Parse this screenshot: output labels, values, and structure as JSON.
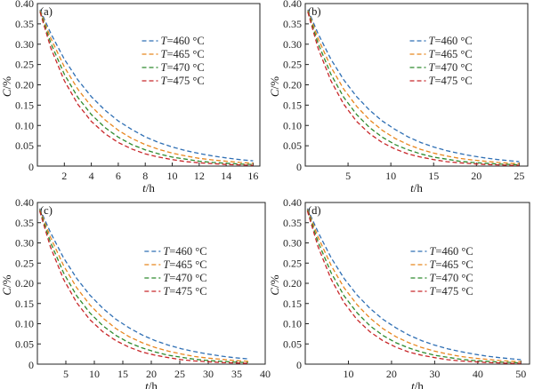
{
  "figure": {
    "y_axis_title": {
      "symbol": "C",
      "unit": "/%"
    },
    "x_axis_title": {
      "symbol": "t",
      "unit": "/h"
    },
    "legend_prefix": "T",
    "legend_suffix": "=",
    "legend_unit": " °C"
  },
  "colors": {
    "series_460": "#2f6fb4",
    "series_465": "#e8861e",
    "series_470": "#2d8a2d",
    "series_475": "#c8272a",
    "axis": "#222222"
  },
  "chart_data": [
    {
      "type": "line",
      "panel_label": "(a)",
      "xlabel": "t/h",
      "ylabel": "C/%",
      "xlim": [
        0,
        16.5
      ],
      "ylim": [
        0,
        0.4
      ],
      "xticks": [
        2,
        4,
        6,
        8,
        10,
        12,
        14,
        16
      ],
      "yticks": [
        0.05,
        0.1,
        0.15,
        0.2,
        0.25,
        0.3,
        0.35,
        0.4
      ],
      "ytick_labels": [
        "0.05",
        "0.10",
        "0.15",
        "0.20",
        "0.25",
        "0.30",
        "0.35",
        "0.40"
      ],
      "origin_label": "0",
      "legend_position": "top-right",
      "series": [
        {
          "name": "T=460 °C",
          "temp": "460",
          "x": [
            0.2,
            1,
            2,
            3,
            4,
            5,
            6,
            7,
            8,
            9,
            10,
            11,
            12,
            13,
            14,
            15,
            16
          ],
          "y": [
            0.385,
            0.326,
            0.263,
            0.212,
            0.171,
            0.138,
            0.111,
            0.09,
            0.072,
            0.058,
            0.047,
            0.038,
            0.031,
            0.025,
            0.02,
            0.016,
            0.013
          ]
        },
        {
          "name": "T=465 °C",
          "temp": "465",
          "x": [
            0.2,
            1,
            2,
            3,
            4,
            5,
            6,
            7,
            8,
            9,
            10,
            11,
            12,
            13,
            14,
            15,
            16
          ],
          "y": [
            0.383,
            0.314,
            0.244,
            0.189,
            0.147,
            0.114,
            0.088,
            0.068,
            0.053,
            0.041,
            0.032,
            0.025,
            0.019,
            0.015,
            0.012,
            0.009,
            0.007
          ]
        },
        {
          "name": "T=470 °C",
          "temp": "470",
          "x": [
            0.2,
            1,
            2,
            3,
            4,
            5,
            6,
            7,
            8,
            9,
            10,
            11,
            12,
            13,
            14,
            15,
            16
          ],
          "y": [
            0.381,
            0.302,
            0.226,
            0.169,
            0.127,
            0.095,
            0.071,
            0.053,
            0.04,
            0.03,
            0.022,
            0.017,
            0.012,
            0.009,
            0.007,
            0.005,
            0.004
          ]
        },
        {
          "name": "T=475 °C",
          "temp": "475",
          "x": [
            0.2,
            1,
            2,
            3,
            4,
            5,
            6,
            7,
            8,
            9,
            10,
            11,
            12,
            13,
            14,
            15,
            16
          ],
          "y": [
            0.379,
            0.29,
            0.21,
            0.152,
            0.11,
            0.08,
            0.058,
            0.042,
            0.03,
            0.022,
            0.016,
            0.011,
            0.008,
            0.006,
            0.004,
            0.003,
            0.002
          ]
        }
      ]
    },
    {
      "type": "line",
      "panel_label": "(b)",
      "xlabel": "t/h",
      "ylabel": "C/%",
      "xlim": [
        0,
        26
      ],
      "ylim": [
        0,
        0.4
      ],
      "xticks": [
        5,
        10,
        15,
        20,
        25
      ],
      "yticks": [
        0.05,
        0.1,
        0.15,
        0.2,
        0.25,
        0.3,
        0.35,
        0.4
      ],
      "ytick_labels": [
        "0.05",
        "0.10",
        "0.15",
        "0.20",
        "0.25",
        "0.30",
        "0.35",
        "0.40"
      ],
      "origin_label": "0",
      "legend_position": "top-right",
      "series": [
        {
          "name": "T=460 °C",
          "temp": "460",
          "x": [
            0.3,
            1.5,
            3,
            4.5,
            6,
            7.5,
            9,
            10.5,
            12,
            13.5,
            15,
            16.5,
            18,
            19.5,
            21,
            22.5,
            24,
            25
          ],
          "y": [
            0.385,
            0.326,
            0.263,
            0.212,
            0.171,
            0.138,
            0.111,
            0.09,
            0.072,
            0.058,
            0.047,
            0.038,
            0.031,
            0.025,
            0.02,
            0.016,
            0.013,
            0.011
          ]
        },
        {
          "name": "T=465 °C",
          "temp": "465",
          "x": [
            0.3,
            1.5,
            3,
            4.5,
            6,
            7.5,
            9,
            10.5,
            12,
            13.5,
            15,
            16.5,
            18,
            19.5,
            21,
            22.5,
            24,
            25
          ],
          "y": [
            0.383,
            0.314,
            0.244,
            0.189,
            0.147,
            0.114,
            0.088,
            0.068,
            0.053,
            0.041,
            0.032,
            0.025,
            0.019,
            0.015,
            0.012,
            0.009,
            0.007,
            0.006
          ]
        },
        {
          "name": "T=470 °C",
          "temp": "470",
          "x": [
            0.3,
            1.5,
            3,
            4.5,
            6,
            7.5,
            9,
            10.5,
            12,
            13.5,
            15,
            16.5,
            18,
            19.5,
            21,
            22.5,
            24,
            25
          ],
          "y": [
            0.381,
            0.302,
            0.226,
            0.169,
            0.127,
            0.095,
            0.071,
            0.053,
            0.04,
            0.03,
            0.022,
            0.017,
            0.012,
            0.009,
            0.007,
            0.005,
            0.004,
            0.003
          ]
        },
        {
          "name": "T=475 °C",
          "temp": "475",
          "x": [
            0.3,
            1.5,
            3,
            4.5,
            6,
            7.5,
            9,
            10.5,
            12,
            13.5,
            15,
            16.5,
            18,
            19.5,
            21,
            22.5,
            24,
            25
          ],
          "y": [
            0.379,
            0.29,
            0.21,
            0.152,
            0.11,
            0.08,
            0.058,
            0.042,
            0.03,
            0.022,
            0.016,
            0.011,
            0.008,
            0.006,
            0.004,
            0.003,
            0.002,
            0.002
          ]
        }
      ]
    },
    {
      "type": "line",
      "panel_label": "(c)",
      "xlabel": "t/h",
      "ylabel": "C/%",
      "xlim": [
        0,
        40
      ],
      "ylim": [
        0,
        0.4
      ],
      "xticks": [
        5,
        10,
        15,
        20,
        25,
        30,
        35,
        40
      ],
      "yticks": [
        0.05,
        0.1,
        0.15,
        0.2,
        0.25,
        0.3,
        0.35,
        0.4
      ],
      "ytick_labels": [
        "0.05",
        "0.10",
        "0.15",
        "0.20",
        "0.25",
        "0.30",
        "0.35",
        "0.40"
      ],
      "origin_label": "0",
      "legend_position": "center-right",
      "series": [
        {
          "name": "T=460 °C",
          "temp": "460",
          "x": [
            0.4,
            2.3,
            4.6,
            6.9,
            9.2,
            11.5,
            13.8,
            16.1,
            18.4,
            20.7,
            23,
            25.3,
            27.6,
            29.9,
            32.2,
            34.5,
            37
          ],
          "y": [
            0.385,
            0.326,
            0.263,
            0.212,
            0.171,
            0.138,
            0.111,
            0.09,
            0.072,
            0.058,
            0.047,
            0.038,
            0.031,
            0.025,
            0.02,
            0.016,
            0.013
          ]
        },
        {
          "name": "T=465 °C",
          "temp": "465",
          "x": [
            0.4,
            2.3,
            4.6,
            6.9,
            9.2,
            11.5,
            13.8,
            16.1,
            18.4,
            20.7,
            23,
            25.3,
            27.6,
            29.9,
            32.2,
            34.5,
            37
          ],
          "y": [
            0.383,
            0.314,
            0.244,
            0.189,
            0.147,
            0.114,
            0.088,
            0.068,
            0.053,
            0.041,
            0.032,
            0.025,
            0.019,
            0.015,
            0.012,
            0.009,
            0.007
          ]
        },
        {
          "name": "T=470 °C",
          "temp": "470",
          "x": [
            0.4,
            2.3,
            4.6,
            6.9,
            9.2,
            11.5,
            13.8,
            16.1,
            18.4,
            20.7,
            23,
            25.3,
            27.6,
            29.9,
            32.2,
            34.5,
            37
          ],
          "y": [
            0.381,
            0.302,
            0.226,
            0.169,
            0.127,
            0.095,
            0.071,
            0.053,
            0.04,
            0.03,
            0.022,
            0.017,
            0.012,
            0.009,
            0.007,
            0.005,
            0.004
          ]
        },
        {
          "name": "T=475 °C",
          "temp": "475",
          "x": [
            0.4,
            2.3,
            4.6,
            6.9,
            9.2,
            11.5,
            13.8,
            16.1,
            18.4,
            20.7,
            23,
            25.3,
            27.6,
            29.9,
            32.2,
            34.5,
            37
          ],
          "y": [
            0.379,
            0.29,
            0.21,
            0.152,
            0.11,
            0.08,
            0.058,
            0.042,
            0.03,
            0.022,
            0.016,
            0.011,
            0.008,
            0.006,
            0.004,
            0.003,
            0.002
          ]
        }
      ]
    },
    {
      "type": "line",
      "panel_label": "(d)",
      "xlabel": "t/h",
      "ylabel": "C/%",
      "xlim": [
        0,
        52
      ],
      "ylim": [
        0,
        0.4
      ],
      "xticks": [
        10,
        20,
        30,
        40,
        50
      ],
      "yticks": [
        0.05,
        0.1,
        0.15,
        0.2,
        0.25,
        0.3,
        0.35,
        0.4
      ],
      "ytick_labels": [
        "0.05",
        "0.10",
        "0.15",
        "0.20",
        "0.25",
        "0.30",
        "0.35",
        "0.40"
      ],
      "origin_label": "0",
      "legend_position": "center-right",
      "series": [
        {
          "name": "T=460 °C",
          "temp": "460",
          "x": [
            0.5,
            3,
            6,
            9,
            12,
            15,
            18,
            21,
            24,
            27,
            30,
            33,
            36,
            39,
            42,
            45,
            48,
            50
          ],
          "y": [
            0.385,
            0.326,
            0.263,
            0.212,
            0.171,
            0.138,
            0.111,
            0.09,
            0.072,
            0.058,
            0.047,
            0.038,
            0.031,
            0.025,
            0.02,
            0.016,
            0.013,
            0.011
          ]
        },
        {
          "name": "T=465 °C",
          "temp": "465",
          "x": [
            0.5,
            3,
            6,
            9,
            12,
            15,
            18,
            21,
            24,
            27,
            30,
            33,
            36,
            39,
            42,
            45,
            48,
            50
          ],
          "y": [
            0.383,
            0.314,
            0.244,
            0.189,
            0.147,
            0.114,
            0.088,
            0.068,
            0.053,
            0.041,
            0.032,
            0.025,
            0.019,
            0.015,
            0.012,
            0.009,
            0.007,
            0.006
          ]
        },
        {
          "name": "T=470 °C",
          "temp": "470",
          "x": [
            0.5,
            3,
            6,
            9,
            12,
            15,
            18,
            21,
            24,
            27,
            30,
            33,
            36,
            39,
            42,
            45,
            48,
            50
          ],
          "y": [
            0.381,
            0.302,
            0.226,
            0.169,
            0.127,
            0.095,
            0.071,
            0.053,
            0.04,
            0.03,
            0.022,
            0.017,
            0.012,
            0.009,
            0.007,
            0.005,
            0.004,
            0.003
          ]
        },
        {
          "name": "T=475 °C",
          "temp": "475",
          "x": [
            0.5,
            3,
            6,
            9,
            12,
            15,
            18,
            21,
            24,
            27,
            30,
            33,
            36,
            39,
            42,
            45,
            48,
            50
          ],
          "y": [
            0.379,
            0.29,
            0.21,
            0.152,
            0.11,
            0.08,
            0.058,
            0.042,
            0.03,
            0.022,
            0.016,
            0.011,
            0.008,
            0.006,
            0.004,
            0.003,
            0.002,
            0.002
          ]
        }
      ]
    }
  ]
}
